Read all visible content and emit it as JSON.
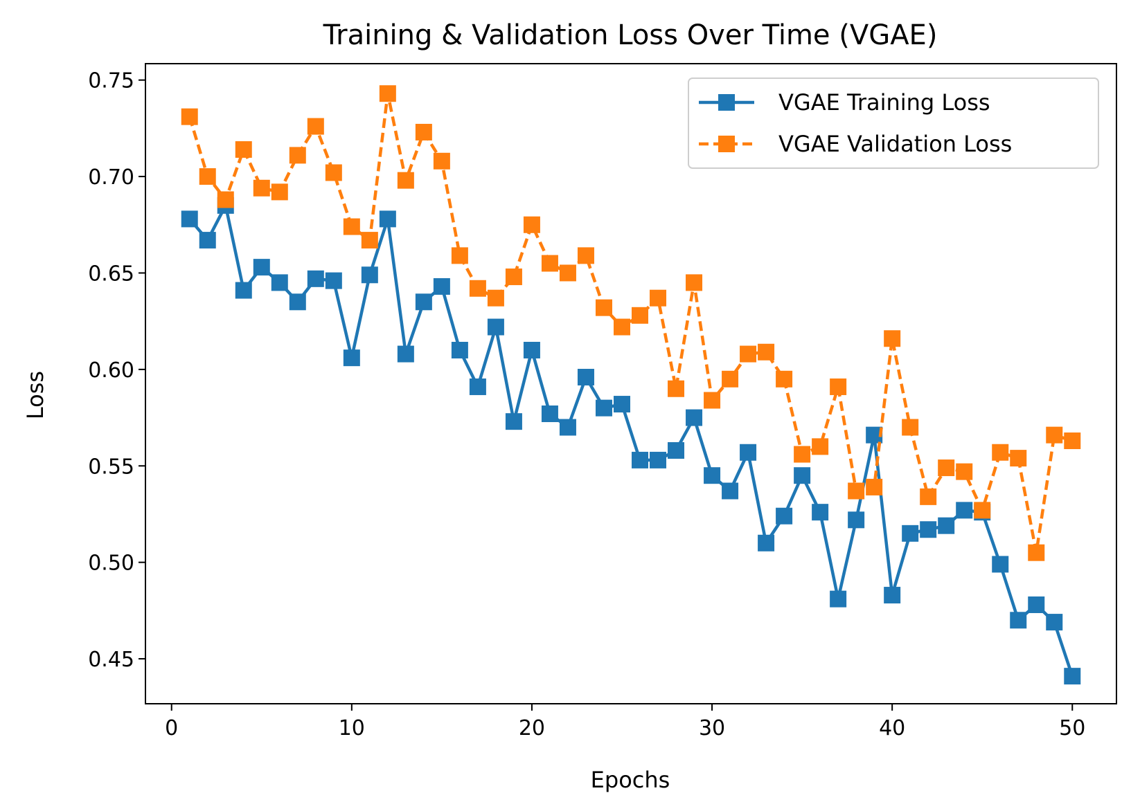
{
  "chart_data": {
    "type": "line",
    "title": "Training & Validation Loss Over Time (VGAE)",
    "xlabel": "Epochs",
    "ylabel": "Loss",
    "xlim": [
      -1.45,
      52.45
    ],
    "ylim": [
      0.4267,
      0.7585
    ],
    "xticks": [
      0,
      10,
      20,
      30,
      40,
      50
    ],
    "yticks": [
      0.45,
      0.5,
      0.55,
      0.6,
      0.65,
      0.7,
      0.75
    ],
    "xtick_labels": [
      "0",
      "10",
      "20",
      "30",
      "40",
      "50"
    ],
    "ytick_labels": [
      "0.45",
      "0.50",
      "0.55",
      "0.60",
      "0.65",
      "0.70",
      "0.75"
    ],
    "grid": false,
    "legend_position": "top-right",
    "x": [
      1,
      2,
      3,
      4,
      5,
      6,
      7,
      8,
      9,
      10,
      11,
      12,
      13,
      14,
      15,
      16,
      17,
      18,
      19,
      20,
      21,
      22,
      23,
      24,
      25,
      26,
      27,
      28,
      29,
      30,
      31,
      32,
      33,
      34,
      35,
      36,
      37,
      38,
      39,
      40,
      41,
      42,
      43,
      44,
      45,
      46,
      47,
      48,
      49,
      50
    ],
    "series": [
      {
        "name": "VGAE Training Loss",
        "color": "#1f77b4",
        "linestyle": "solid",
        "marker": "square",
        "values": [
          0.678,
          0.667,
          0.685,
          0.641,
          0.653,
          0.645,
          0.635,
          0.647,
          0.646,
          0.606,
          0.649,
          0.678,
          0.608,
          0.635,
          0.643,
          0.61,
          0.591,
          0.622,
          0.573,
          0.61,
          0.577,
          0.57,
          0.596,
          0.58,
          0.582,
          0.553,
          0.553,
          0.558,
          0.575,
          0.545,
          0.537,
          0.557,
          0.51,
          0.524,
          0.545,
          0.526,
          0.481,
          0.522,
          0.566,
          0.483,
          0.515,
          0.517,
          0.519,
          0.527,
          0.526,
          0.499,
          0.47,
          0.478,
          0.469,
          0.441
        ]
      },
      {
        "name": "VGAE Validation Loss",
        "color": "#ff7f0e",
        "linestyle": "dashed",
        "marker": "square",
        "values": [
          0.731,
          0.7,
          0.688,
          0.714,
          0.694,
          0.692,
          0.711,
          0.726,
          0.702,
          0.674,
          0.667,
          0.743,
          0.698,
          0.723,
          0.708,
          0.659,
          0.642,
          0.637,
          0.648,
          0.675,
          0.655,
          0.65,
          0.659,
          0.632,
          0.622,
          0.628,
          0.637,
          0.59,
          0.645,
          0.584,
          0.595,
          0.608,
          0.609,
          0.595,
          0.556,
          0.56,
          0.591,
          0.537,
          0.539,
          0.616,
          0.57,
          0.534,
          0.549,
          0.547,
          0.527,
          0.557,
          0.554,
          0.505,
          0.566,
          0.563
        ]
      }
    ]
  }
}
